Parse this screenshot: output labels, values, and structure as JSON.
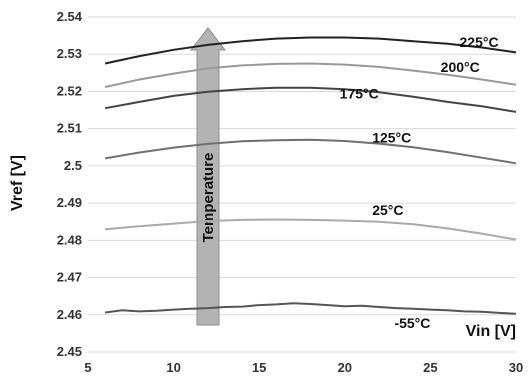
{
  "chart_data": {
    "type": "line",
    "title": "",
    "xlabel": "Vin [V]",
    "ylabel": "Vref [V]",
    "xlim": [
      5,
      30
    ],
    "ylim": [
      2.45,
      2.54
    ],
    "grid": "horizontal",
    "x_ticks": [
      "5",
      "10",
      "15",
      "20",
      "25",
      "30"
    ],
    "y_ticks": [
      "2.45",
      "2.46",
      "2.47",
      "2.48",
      "2.49",
      "2.5",
      "2.51",
      "2.52",
      "2.53",
      "2.54"
    ],
    "arrow_label": "Temperature",
    "colors": {
      "arrow_fill": "#b3b3b3",
      "arrow_stroke": "#8c8c8c",
      "grid": "#d9d9d9"
    },
    "series": [
      {
        "name": "225°C",
        "color": "#222222",
        "x": [
          6,
          8,
          10,
          12,
          14,
          16,
          18,
          20,
          22,
          24,
          26,
          28,
          30
        ],
        "y": [
          2.5275,
          2.5295,
          2.5312,
          2.5325,
          2.5335,
          2.5342,
          2.5345,
          2.5345,
          2.5342,
          2.5335,
          2.5328,
          2.5318,
          2.5305
        ]
      },
      {
        "name": "200°C",
        "color": "#999999",
        "x": [
          6,
          8,
          10,
          12,
          14,
          16,
          18,
          20,
          22,
          24,
          26,
          28,
          30
        ],
        "y": [
          2.5212,
          2.5232,
          2.5248,
          2.5262,
          2.527,
          2.5274,
          2.5275,
          2.5272,
          2.5266,
          2.5256,
          2.5245,
          2.5232,
          2.5218
        ]
      },
      {
        "name": "175°C",
        "color": "#444444",
        "x": [
          6,
          8,
          10,
          12,
          14,
          16,
          18,
          20,
          22,
          24,
          26,
          28,
          30
        ],
        "y": [
          2.5155,
          2.5172,
          2.5188,
          2.5199,
          2.5206,
          2.521,
          2.521,
          2.5206,
          2.5198,
          2.5186,
          2.5172,
          2.516,
          2.5145
        ]
      },
      {
        "name": "125°C",
        "color": "#707070",
        "x": [
          6,
          8,
          10,
          12,
          14,
          16,
          18,
          20,
          22,
          24,
          26,
          28,
          30
        ],
        "y": [
          2.502,
          2.5036,
          2.5049,
          2.5059,
          2.5066,
          2.5069,
          2.507,
          2.5067,
          2.506,
          2.505,
          2.5037,
          2.5022,
          2.5007
        ]
      },
      {
        "name": "25°C",
        "color": "#aaaaaa",
        "x": [
          6,
          8,
          10,
          12,
          14,
          16,
          18,
          20,
          22,
          24,
          26,
          28,
          30
        ],
        "y": [
          2.483,
          2.4838,
          2.4845,
          2.4852,
          2.4855,
          2.4856,
          2.4855,
          2.4853,
          2.485,
          2.4843,
          2.4832,
          2.4818,
          2.4802
        ]
      },
      {
        "name": "-55°C",
        "color": "#555555",
        "x": [
          6,
          7,
          8,
          9,
          10,
          11,
          12,
          13,
          14,
          15,
          16,
          17,
          18,
          19,
          20,
          21,
          22,
          23,
          24,
          25,
          26,
          27,
          28,
          29,
          30
        ],
        "y": [
          2.4606,
          2.4612,
          2.4609,
          2.4611,
          2.4614,
          2.4616,
          2.4618,
          2.4621,
          2.4622,
          2.4626,
          2.4628,
          2.4631,
          2.4629,
          2.4626,
          2.4623,
          2.4624,
          2.4621,
          2.4618,
          2.4616,
          2.4614,
          2.4612,
          2.4609,
          2.4608,
          2.4605,
          2.4603
        ]
      }
    ]
  }
}
